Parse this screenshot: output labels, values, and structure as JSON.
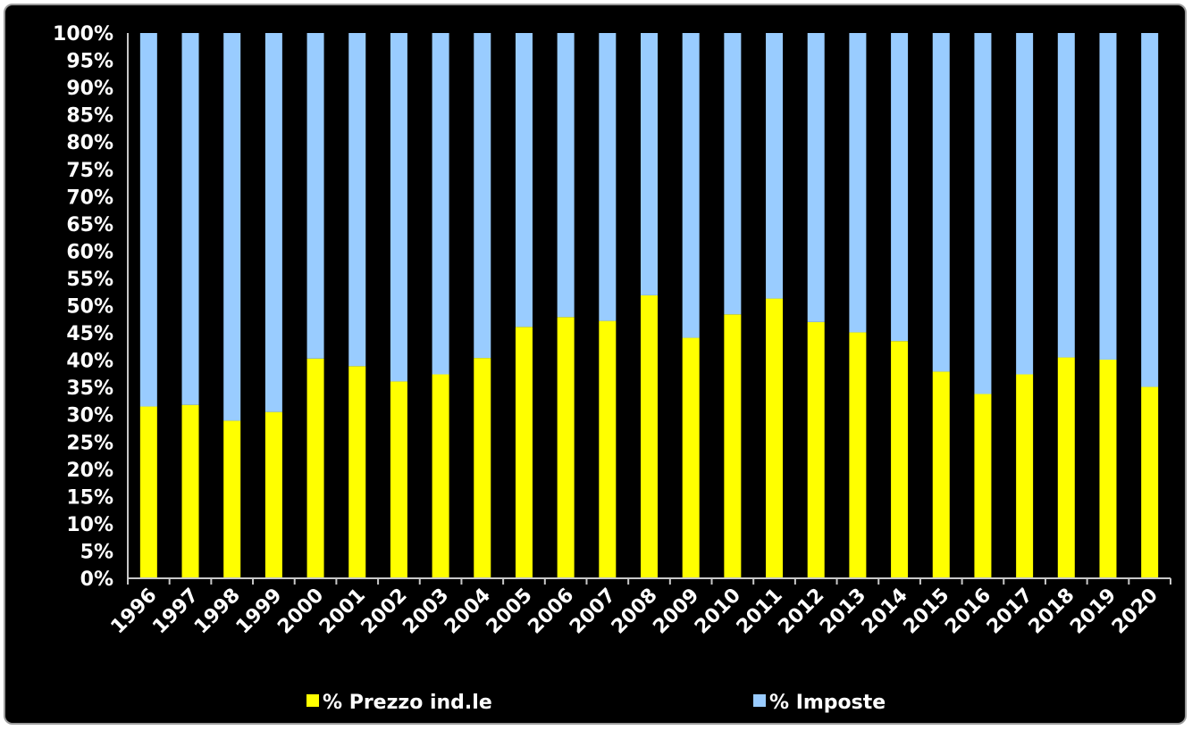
{
  "chart_data": {
    "type": "bar",
    "stacked": true,
    "percent_stacked": true,
    "categories": [
      "1996",
      "1997",
      "1998",
      "1999",
      "2000",
      "2001",
      "2002",
      "2003",
      "2004",
      "2005",
      "2006",
      "2007",
      "2008",
      "2009",
      "2010",
      "2011",
      "2012",
      "2013",
      "2014",
      "2015",
      "2016",
      "2017",
      "2018",
      "2019",
      "2020"
    ],
    "series": [
      {
        "name": "% Prezzo ind.le",
        "color": "#ffff00",
        "values": [
          31.5,
          31.8,
          28.9,
          30.5,
          40.3,
          38.9,
          36.1,
          37.4,
          40.4,
          46.1,
          47.9,
          47.2,
          51.9,
          44.1,
          48.4,
          51.3,
          47.0,
          45.1,
          43.5,
          37.9,
          33.8,
          37.4,
          40.5,
          40.1,
          35.1
        ]
      },
      {
        "name": "% Imposte",
        "color": "#99ccff",
        "values": [
          68.5,
          68.2,
          71.1,
          69.5,
          59.7,
          61.1,
          63.9,
          62.6,
          59.6,
          53.9,
          52.1,
          52.8,
          48.1,
          55.9,
          51.6,
          48.7,
          53.0,
          54.9,
          56.5,
          62.1,
          66.2,
          62.6,
          59.5,
          59.9,
          64.9
        ]
      }
    ],
    "y_ticks": [
      "0%",
      "5%",
      "10%",
      "15%",
      "20%",
      "25%",
      "30%",
      "35%",
      "40%",
      "45%",
      "50%",
      "55%",
      "60%",
      "65%",
      "70%",
      "75%",
      "80%",
      "85%",
      "90%",
      "95%",
      "100%"
    ],
    "ylim": [
      0,
      100
    ],
    "grid": false,
    "legend_position": "bottom",
    "background": "#000000",
    "text_color": "#ffffff"
  }
}
